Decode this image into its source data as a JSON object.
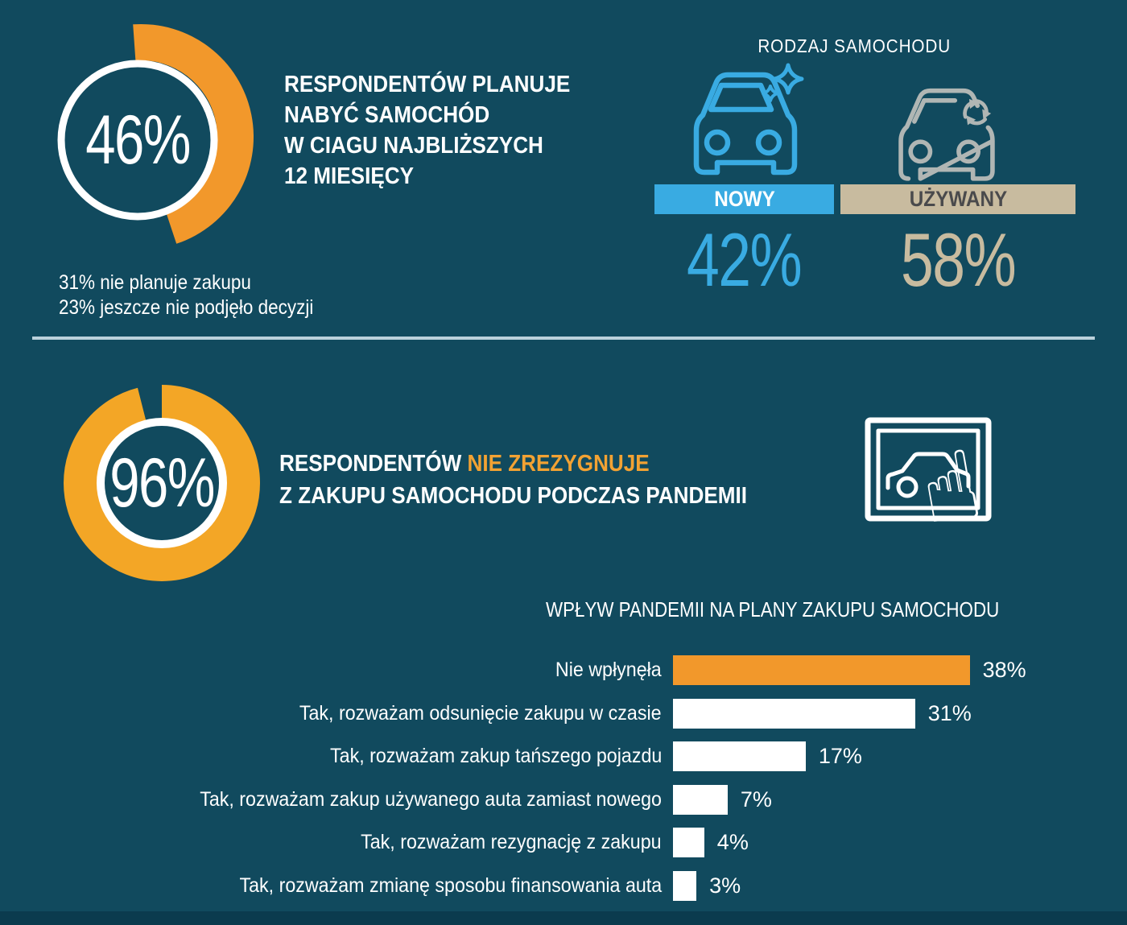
{
  "colors": {
    "background": "#114A5E",
    "orange_arc": "#F2982B",
    "orange_ring": "#F3A626",
    "orange_text": "#F2A233",
    "blue": "#39ABE2",
    "tan": "#C8BB9F",
    "tan_label_text": "#4A4A4C",
    "used_icon_gray": "#B0B6B4",
    "white": "#FFFFFF",
    "divider": "#BBD1DC",
    "bottom_band": "#0B3B4E"
  },
  "icons": {
    "new_car": "new-car-sparkle-icon",
    "used_car": "used-car-recycle-icon",
    "click": "car-select-touch-icon",
    "hand_glyph": "☝"
  },
  "section_plan": {
    "heading_lines": [
      "RESPONDENTÓW PLANUJE",
      "NABYĆ SAMOCHÓD",
      "W CIAGU NAJBLIŻSZYCH",
      "12 MIESIĘCY"
    ],
    "notes": [
      "31% nie planuje zakupu",
      "23% jeszcze nie podjęło decyzji"
    ]
  },
  "section_pandemic": {
    "heading_white": "RESPONDENTÓW",
    "heading_orange": "NIE ZREZYGNUJE",
    "heading_line2": "Z ZAKUPU SAMOCHODU PODCZAS PANDEMII"
  },
  "chart_data": [
    {
      "type": "pie",
      "subtype": "donut",
      "title": "RESPONDENTÓW PLANUJE NABYĆ SAMOCHÓD W CIAGU NAJBLIŻSZYCH 12 MIESIĘCY",
      "labels": [
        "planuje zakup",
        "nie planuje zakupu",
        "jeszcze nie podjęło decyzji"
      ],
      "values": [
        46,
        31,
        23
      ],
      "center_label": "46%",
      "color": "#F2982B"
    },
    {
      "type": "bar",
      "title": "RODZAJ SAMOCHODU",
      "categories": [
        "NOWY",
        "UŻYWANY"
      ],
      "values": [
        42,
        58
      ],
      "value_labels": [
        "42%",
        "58%"
      ],
      "colors": [
        "#39ABE2",
        "#C8BB9F"
      ]
    },
    {
      "type": "pie",
      "subtype": "donut",
      "title": "RESPONDENTÓW NIE ZREZYGNUJE Z ZAKUPU SAMOCHODU PODCZAS PANDEMII",
      "labels": [
        "nie zrezygnuje z zakupu podczas pandemii"
      ],
      "values": [
        96
      ],
      "center_label": "96%",
      "color": "#F3A626"
    },
    {
      "type": "bar",
      "orientation": "horizontal",
      "title": "WPŁYW PANDEMII NA PLANY ZAKUPU SAMOCHODU",
      "categories": [
        "Nie wpłynęła",
        "Tak, rozważam odsunięcie zakupu w czasie",
        "Tak, rozważam zakup tańszego pojazdu",
        "Tak, rozważam zakup używanego auta zamiast nowego",
        "Tak, rozważam rezygnację z zakupu",
        "Tak, rozważam zmianę sposobu finansowania auta"
      ],
      "values": [
        38,
        31,
        17,
        7,
        4,
        3
      ],
      "value_labels": [
        "38%",
        "31%",
        "17%",
        "7%",
        "4%",
        "3%"
      ],
      "bar_colors": [
        "#F2982B",
        "#FFFFFF",
        "#FFFFFF",
        "#FFFFFF",
        "#FFFFFF",
        "#FFFFFF"
      ],
      "xlim": [
        0,
        40
      ],
      "grid": false,
      "legend": false
    }
  ]
}
